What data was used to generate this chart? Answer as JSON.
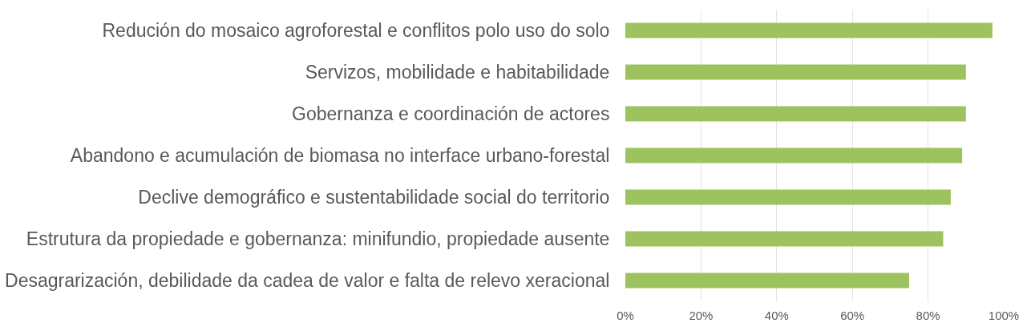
{
  "chart_data": {
    "type": "bar",
    "orientation": "horizontal",
    "categories": [
      "Redución do mosaico agroforestal e conflitos polo uso do solo",
      "Servizos, mobilidade e habitabilidade",
      "Gobernanza e coordinación de actores",
      "Abandono e acumulación de biomasa no interface urbano-forestal",
      "Declive demográfico e sustentabilidade social do territorio",
      "Estrutura da propiedade e gobernanza: minifundio, propiedade ausente",
      "Desagrarización, debilidade da cadea de valor e falta de relevo xeracional"
    ],
    "values": [
      97,
      90,
      90,
      89,
      86,
      84,
      75
    ],
    "color": "#9dc35f",
    "xlim": [
      0,
      100
    ],
    "xticks": [
      {
        "value": 0,
        "label": "0%"
      },
      {
        "value": 20,
        "label": "20%"
      },
      {
        "value": 40,
        "label": "40%"
      },
      {
        "value": 60,
        "label": "60%"
      },
      {
        "value": 80,
        "label": "80%"
      },
      {
        "value": 100,
        "label": "100%"
      }
    ],
    "grid": "x"
  }
}
